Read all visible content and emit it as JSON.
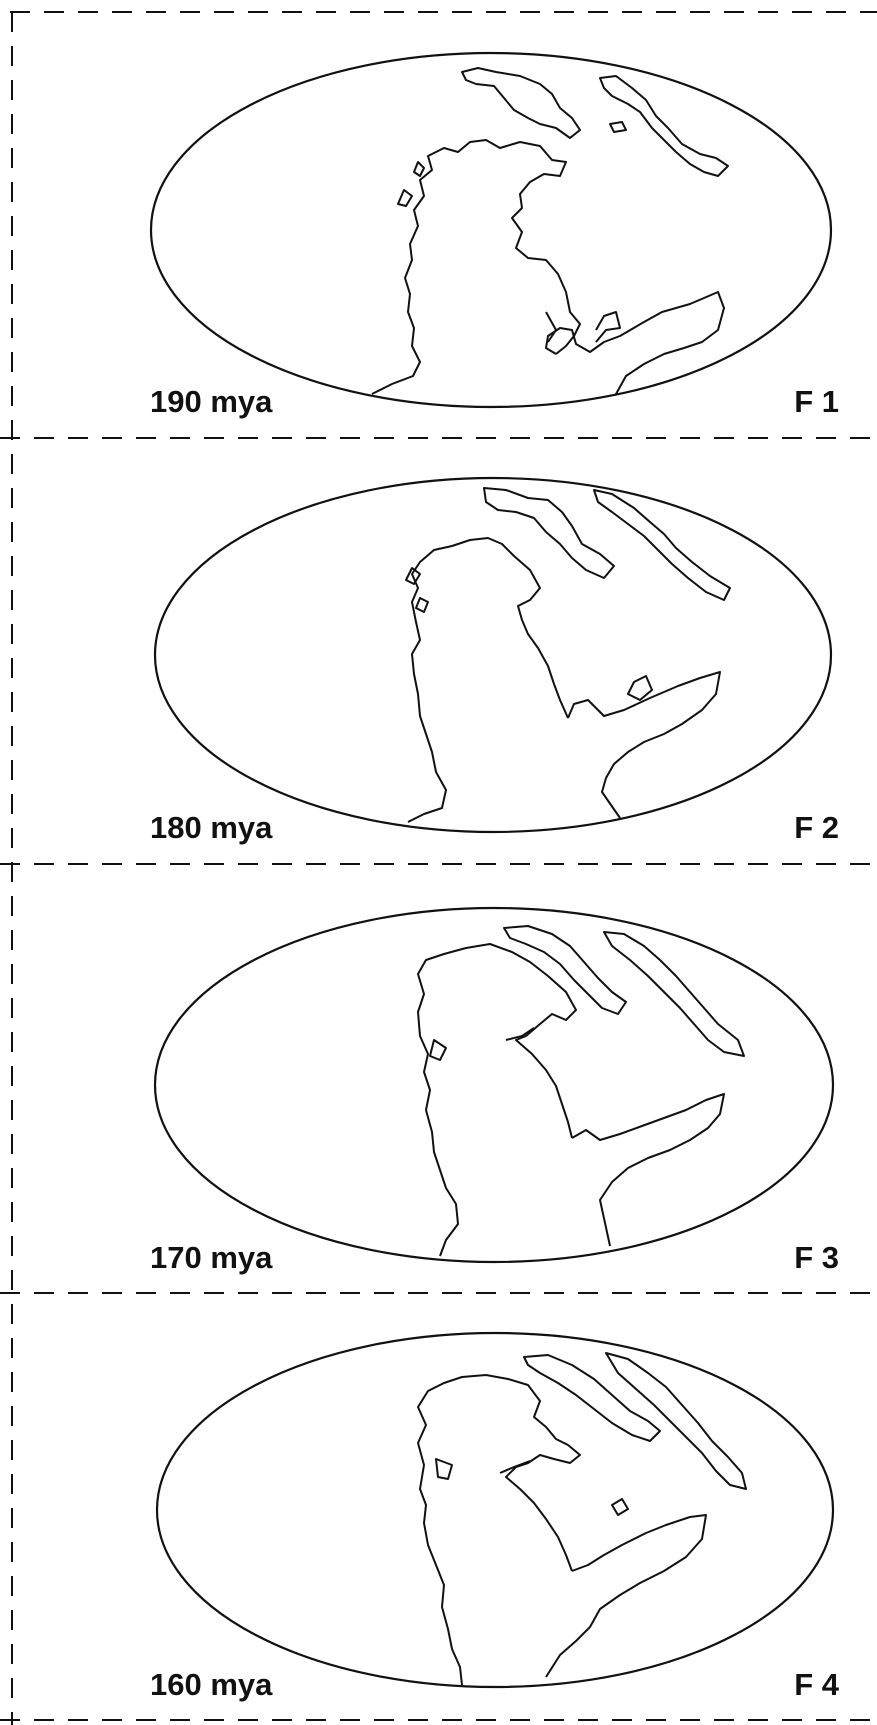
{
  "colors": {
    "ink": "#111111",
    "paper": "#ffffff"
  },
  "panels": [
    {
      "age": "190 mya",
      "frame": "F 1"
    },
    {
      "age": "180 mya",
      "frame": "F 2"
    },
    {
      "age": "170 mya",
      "frame": "F 3"
    },
    {
      "age": "160 mya",
      "frame": "F 4"
    }
  ]
}
